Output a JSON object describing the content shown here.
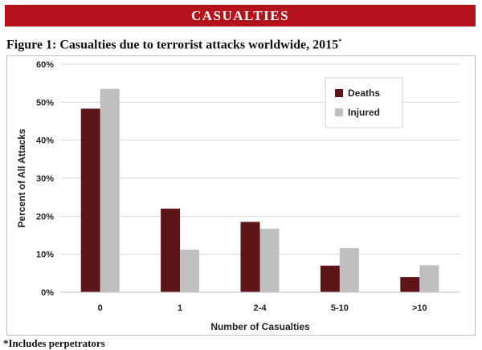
{
  "header": {
    "banner": "CASUALTIES",
    "figure_title": "Figure 1: Casualties due to terrorist attacks worldwide, 2015",
    "figure_title_mark": "*"
  },
  "footnote": "*Includes perpetrators",
  "colors": {
    "banner": "#b5121b",
    "deaths": "#5c1518",
    "injured": "#bfbfbf",
    "grid": "#d9d9d9"
  },
  "chart_data": {
    "type": "bar",
    "title": "Figure 1: Casualties due to terrorist attacks worldwide, 2015",
    "xlabel": "Number of Casualties",
    "ylabel": "Percent of All Attacks",
    "categories": [
      "0",
      "1",
      "2-4",
      "5-10",
      ">10"
    ],
    "series": [
      {
        "name": "Deaths",
        "values": [
          48.3,
          22.0,
          18.5,
          7.0,
          4.0
        ]
      },
      {
        "name": "Injured",
        "values": [
          53.5,
          11.2,
          16.7,
          11.6,
          7.1
        ]
      }
    ],
    "ylim": [
      0,
      60
    ],
    "yticks": [
      0,
      10,
      20,
      30,
      40,
      50,
      60
    ],
    "ytick_labels": [
      "0%",
      "10%",
      "20%",
      "30%",
      "40%",
      "50%",
      "60%"
    ],
    "grid": true,
    "legend_position": "top-right"
  }
}
